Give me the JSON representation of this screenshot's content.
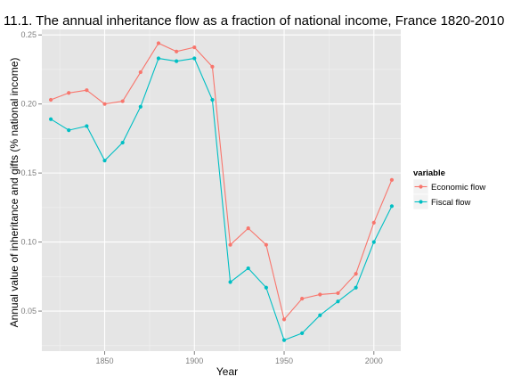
{
  "chart_data": {
    "type": "line",
    "title": "11.1. The annual inheritance flow as a fraction of national income, France 1820-2010",
    "xlabel": "Year",
    "ylabel": "Annual value of inheritance and gifts (% national income)",
    "xlim": [
      1815,
      2015
    ],
    "ylim": [
      0.021,
      0.254
    ],
    "x_ticks": [
      1850,
      1900,
      1950,
      2000
    ],
    "x_tick_labels": [
      "1850",
      "1900",
      "1950",
      "2000"
    ],
    "y_ticks": [
      0.05,
      0.1,
      0.15,
      0.2,
      0.25
    ],
    "y_tick_labels": [
      "0.05",
      "0.10",
      "0.15",
      "0.20",
      "0.25"
    ],
    "grid": true,
    "legend": {
      "title": "variable",
      "position": "right"
    },
    "x": [
      1820,
      1830,
      1840,
      1850,
      1860,
      1870,
      1880,
      1890,
      1900,
      1910,
      1920,
      1930,
      1940,
      1950,
      1960,
      1970,
      1980,
      1990,
      2000,
      2010
    ],
    "series": [
      {
        "name": "Economic flow",
        "color": "#F8766D",
        "values": [
          0.203,
          0.208,
          0.21,
          0.2,
          0.202,
          0.223,
          0.244,
          0.238,
          0.241,
          0.227,
          0.098,
          0.11,
          0.098,
          0.044,
          0.059,
          0.062,
          0.063,
          0.077,
          0.114,
          0.145
        ]
      },
      {
        "name": "Fiscal flow",
        "color": "#00BFC4",
        "values": [
          0.189,
          0.181,
          0.184,
          0.159,
          0.172,
          0.198,
          0.233,
          0.231,
          0.233,
          0.203,
          0.071,
          0.081,
          0.067,
          0.029,
          0.034,
          0.047,
          0.057,
          0.067,
          0.1,
          0.126
        ]
      }
    ]
  }
}
